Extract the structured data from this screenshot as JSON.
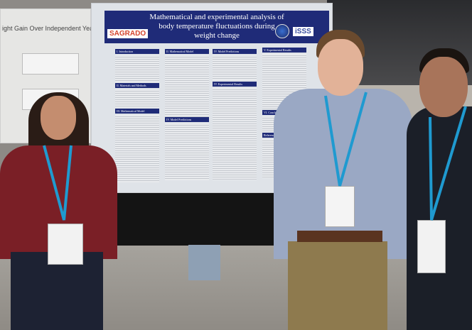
{
  "left_poster": {
    "title_fragment": "ight Gain Over Independent Years"
  },
  "main_poster": {
    "title": "Mathematical and experimental analysis of body temperature fluctuations during weight change",
    "logos": [
      "SAGRADO",
      "iSSS"
    ],
    "sections": [
      "I. Introduction",
      "II. Mathematical Model",
      "IV. Model Predictions",
      "V. Experimental Results",
      "II. Materials and Methods",
      "IV. Experimental Results",
      "III. Mathematical Model",
      "VI. Conclusions",
      "IV. Model Predictions",
      "References"
    ]
  },
  "colors": {
    "banner": "#1f2b78",
    "shirt_woman": "#7a1f26",
    "shirt_center": "#9aa8c4",
    "pants_center": "#8e7a4e",
    "shirt_right": "#1b1f28",
    "lanyard": "#1f9ad0"
  }
}
